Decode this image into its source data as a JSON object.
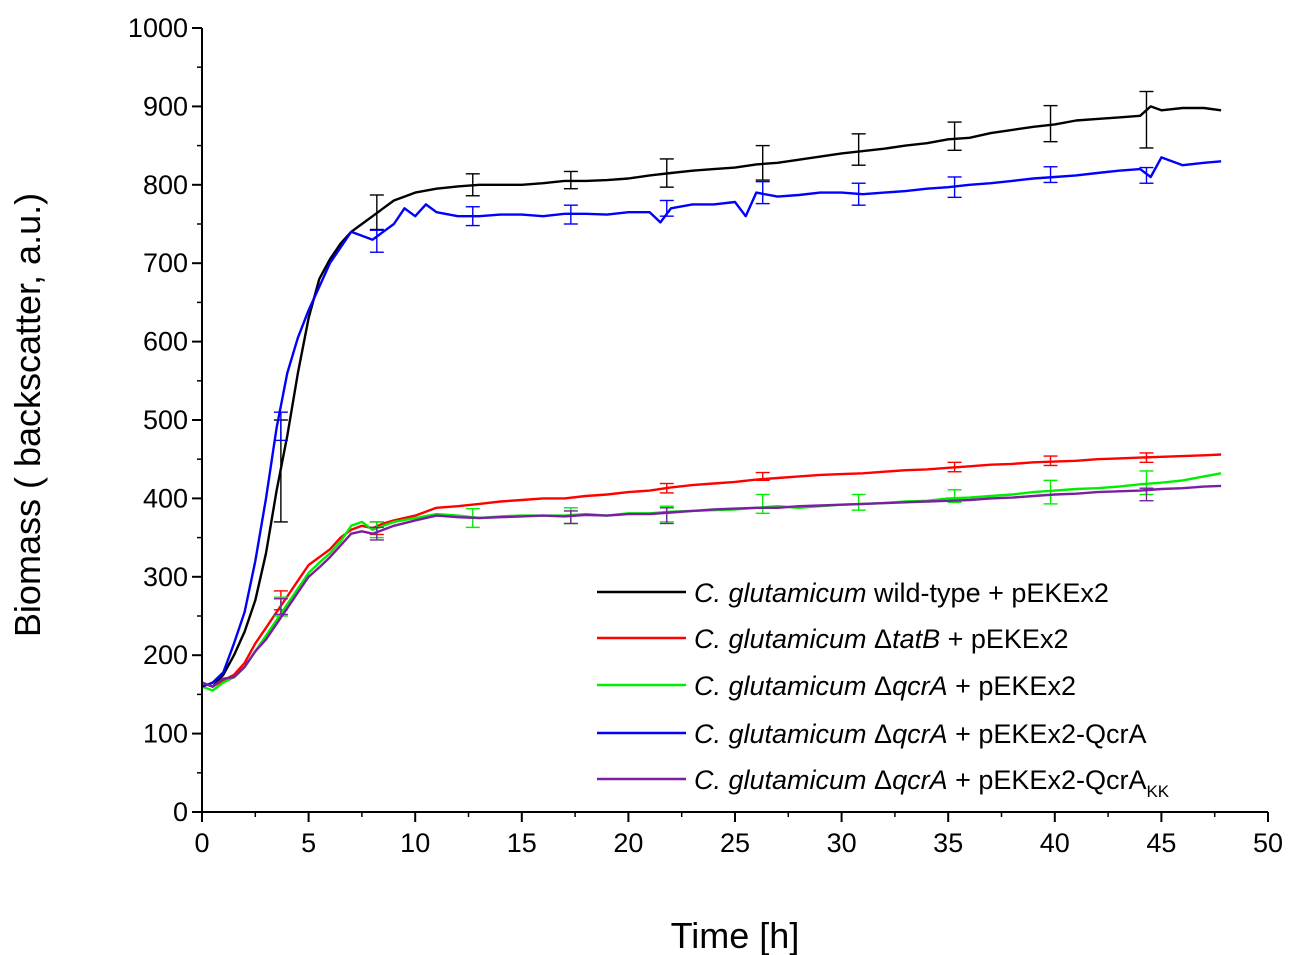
{
  "chart_data": {
    "type": "line",
    "title": "",
    "xlabel": "Time [h]",
    "ylabel": "Biomass ( backscatter, a.u.)",
    "xlim": [
      0,
      50
    ],
    "ylim": [
      0,
      1000
    ],
    "x_ticks": [
      0,
      5,
      10,
      15,
      20,
      25,
      30,
      35,
      40,
      45,
      50
    ],
    "y_ticks": [
      0,
      100,
      200,
      300,
      400,
      500,
      600,
      700,
      800,
      900,
      1000
    ],
    "grid": false,
    "legend_position": "bottom-right",
    "series": [
      {
        "name": "C. glutamicum wild-type + pEKEx2",
        "legend_parts": [
          [
            "C. glutamicum",
            "i"
          ],
          [
            " wild-type + pEKEx2",
            "n"
          ]
        ],
        "color": "#000000",
        "x": [
          0,
          0.5,
          1,
          1.5,
          2,
          2.5,
          3,
          3.5,
          4,
          4.5,
          5,
          5.5,
          6,
          6.5,
          7,
          7.5,
          8,
          8.5,
          9,
          9.5,
          10,
          11,
          12,
          13,
          14,
          15,
          16,
          17,
          18,
          19,
          20,
          21,
          22,
          23,
          24,
          25,
          26,
          27,
          28,
          29,
          30,
          31,
          32,
          33,
          34,
          35,
          36,
          37,
          38,
          39,
          40,
          41,
          42,
          43,
          44,
          44.5,
          45,
          46,
          47,
          47.8
        ],
        "y": [
          165,
          160,
          175,
          200,
          230,
          270,
          330,
          410,
          480,
          560,
          630,
          680,
          705,
          725,
          740,
          750,
          760,
          770,
          780,
          785,
          790,
          795,
          798,
          800,
          800,
          800,
          802,
          805,
          805,
          806,
          808,
          812,
          815,
          818,
          820,
          822,
          826,
          828,
          832,
          836,
          840,
          843,
          846,
          850,
          853,
          858,
          860,
          866,
          870,
          874,
          877,
          882,
          884,
          886,
          888,
          900,
          895,
          898,
          898,
          895
        ],
        "errors": [
          {
            "x": 3.7,
            "y": 435,
            "e": 65
          },
          {
            "x": 8.2,
            "y": 765,
            "e": 22
          },
          {
            "x": 12.7,
            "y": 800,
            "e": 14
          },
          {
            "x": 17.3,
            "y": 806,
            "e": 11
          },
          {
            "x": 21.8,
            "y": 815,
            "e": 18
          },
          {
            "x": 26.3,
            "y": 828,
            "e": 22
          },
          {
            "x": 30.8,
            "y": 845,
            "e": 20
          },
          {
            "x": 35.3,
            "y": 862,
            "e": 18
          },
          {
            "x": 39.8,
            "y": 878,
            "e": 23
          },
          {
            "x": 44.3,
            "y": 883,
            "e": 36
          }
        ]
      },
      {
        "name": "C. glutamicum ΔtatB + pEKEx2",
        "legend_parts": [
          [
            "C. glutamicum",
            "i"
          ],
          [
            " Δ",
            "n"
          ],
          [
            "tatB",
            "i"
          ],
          [
            " + pEKEx2",
            "n"
          ]
        ],
        "color": "#ff0000",
        "x": [
          0,
          0.5,
          1,
          1.5,
          2,
          2.5,
          3,
          3.5,
          4,
          4.5,
          5,
          5.5,
          6,
          6.5,
          7,
          7.5,
          8,
          8.5,
          9,
          10,
          11,
          12,
          13,
          14,
          15,
          16,
          17,
          18,
          19,
          20,
          21,
          22,
          23,
          24,
          25,
          26,
          27,
          28,
          29,
          30,
          31,
          32,
          33,
          34,
          35,
          36,
          37,
          38,
          39,
          40,
          41,
          42,
          43,
          44,
          45,
          46,
          47,
          47.8
        ],
        "y": [
          165,
          160,
          168,
          175,
          190,
          215,
          235,
          255,
          275,
          295,
          315,
          325,
          335,
          350,
          360,
          365,
          362,
          368,
          372,
          378,
          388,
          390,
          393,
          396,
          398,
          400,
          400,
          403,
          405,
          408,
          410,
          414,
          417,
          419,
          421,
          424,
          426,
          428,
          430,
          431,
          432,
          434,
          436,
          437,
          439,
          441,
          443,
          444,
          446,
          447,
          448,
          450,
          451,
          452,
          453,
          454,
          455,
          456
        ],
        "errors": [
          {
            "x": 3.7,
            "y": 270,
            "e": 12
          },
          {
            "x": 8.2,
            "y": 362,
            "e": 8
          },
          {
            "x": 21.8,
            "y": 413,
            "e": 6
          },
          {
            "x": 26.3,
            "y": 428,
            "e": 5
          },
          {
            "x": 35.3,
            "y": 440,
            "e": 6
          },
          {
            "x": 39.8,
            "y": 448,
            "e": 6
          },
          {
            "x": 44.3,
            "y": 452,
            "e": 6
          }
        ]
      },
      {
        "name": "C. glutamicum ΔqcrA + pEKEx2",
        "legend_parts": [
          [
            "C. glutamicum",
            "i"
          ],
          [
            " Δ",
            "n"
          ],
          [
            "qcrA",
            "i"
          ],
          [
            " + pEKEx2",
            "n"
          ]
        ],
        "color": "#00ee00",
        "x": [
          0,
          0.5,
          1,
          1.5,
          2,
          2.5,
          3,
          3.5,
          4,
          4.5,
          5,
          5.5,
          6,
          6.5,
          7,
          7.5,
          8,
          8.5,
          9,
          10,
          11,
          12,
          13,
          14,
          15,
          16,
          17,
          18,
          19,
          20,
          21,
          22,
          23,
          24,
          25,
          26,
          27,
          28,
          29,
          30,
          31,
          32,
          33,
          34,
          35,
          36,
          37,
          38,
          39,
          40,
          41,
          42,
          43,
          44,
          45,
          46,
          47,
          47.8
        ],
        "y": [
          160,
          155,
          165,
          172,
          185,
          205,
          225,
          245,
          265,
          285,
          305,
          318,
          330,
          345,
          365,
          370,
          360,
          365,
          370,
          375,
          380,
          378,
          375,
          377,
          378,
          378,
          378,
          380,
          378,
          381,
          381,
          383,
          384,
          385,
          386,
          388,
          390,
          388,
          390,
          392,
          393,
          394,
          396,
          397,
          400,
          401,
          403,
          405,
          408,
          410,
          412,
          413,
          415,
          418,
          420,
          423,
          428,
          432
        ],
        "errors": [
          {
            "x": 3.7,
            "y": 262,
            "e": 12
          },
          {
            "x": 8.2,
            "y": 360,
            "e": 10
          },
          {
            "x": 12.7,
            "y": 375,
            "e": 12
          },
          {
            "x": 17.3,
            "y": 378,
            "e": 10
          },
          {
            "x": 21.8,
            "y": 380,
            "e": 10
          },
          {
            "x": 26.3,
            "y": 393,
            "e": 12
          },
          {
            "x": 30.8,
            "y": 395,
            "e": 10
          },
          {
            "x": 35.3,
            "y": 403,
            "e": 8
          },
          {
            "x": 39.8,
            "y": 408,
            "e": 15
          },
          {
            "x": 44.3,
            "y": 420,
            "e": 15
          }
        ]
      },
      {
        "name": "C. glutamicum ΔqcrA + pEKEx2-QcrA",
        "legend_parts": [
          [
            "C. glutamicum",
            "i"
          ],
          [
            " Δ",
            "n"
          ],
          [
            "qcrA",
            "i"
          ],
          [
            " + pEKEx2-QcrA",
            "n"
          ]
        ],
        "color": "#0000ff",
        "x": [
          0,
          0.5,
          1,
          1.5,
          2,
          2.5,
          3,
          3.5,
          4,
          4.5,
          5,
          5.5,
          6,
          6.5,
          7,
          7.5,
          8,
          8.5,
          9,
          9.5,
          10,
          10.5,
          11,
          12,
          13,
          14,
          15,
          16,
          17,
          18,
          19,
          20,
          21,
          21.5,
          22,
          23,
          24,
          25,
          25.5,
          26,
          27,
          28,
          29,
          30,
          31,
          32,
          33,
          34,
          35,
          36,
          37,
          38,
          39,
          40,
          41,
          42,
          43,
          44,
          44.5,
          45,
          46,
          47,
          47.8
        ],
        "y": [
          160,
          165,
          178,
          215,
          255,
          320,
          400,
          490,
          560,
          605,
          640,
          670,
          700,
          720,
          740,
          735,
          730,
          740,
          750,
          770,
          760,
          775,
          765,
          760,
          760,
          762,
          762,
          760,
          763,
          763,
          762,
          765,
          765,
          752,
          770,
          775,
          775,
          778,
          760,
          790,
          785,
          787,
          790,
          790,
          788,
          790,
          792,
          795,
          797,
          800,
          802,
          805,
          808,
          810,
          812,
          815,
          818,
          820,
          810,
          835,
          825,
          828,
          830
        ],
        "errors": [
          {
            "x": 3.7,
            "y": 492,
            "e": 18
          },
          {
            "x": 8.2,
            "y": 728,
            "e": 14
          },
          {
            "x": 12.7,
            "y": 760,
            "e": 12
          },
          {
            "x": 17.3,
            "y": 762,
            "e": 12
          },
          {
            "x": 21.8,
            "y": 770,
            "e": 10
          },
          {
            "x": 26.3,
            "y": 790,
            "e": 14
          },
          {
            "x": 30.8,
            "y": 788,
            "e": 14
          },
          {
            "x": 35.3,
            "y": 797,
            "e": 13
          },
          {
            "x": 39.8,
            "y": 813,
            "e": 10
          },
          {
            "x": 44.3,
            "y": 812,
            "e": 10
          }
        ]
      },
      {
        "name": "C. glutamicum ΔqcrA + pEKEx2-QcrAKK",
        "legend_parts": [
          [
            "C. glutamicum",
            "i"
          ],
          [
            " Δ",
            "n"
          ],
          [
            "qcrA",
            "i"
          ],
          [
            " + pEKEx2-QcrA",
            "n"
          ],
          [
            "KK",
            "sub"
          ]
        ],
        "color": "#7b1fa2",
        "x": [
          0,
          0.5,
          1,
          1.5,
          2,
          2.5,
          3,
          3.5,
          4,
          4.5,
          5,
          5.5,
          6,
          6.5,
          7,
          7.5,
          8,
          8.5,
          9,
          10,
          11,
          12,
          13,
          14,
          15,
          16,
          17,
          18,
          19,
          20,
          21,
          22,
          23,
          24,
          25,
          26,
          27,
          28,
          29,
          30,
          31,
          32,
          33,
          34,
          35,
          36,
          37,
          38,
          39,
          40,
          41,
          42,
          43,
          44,
          45,
          46,
          47,
          47.8
        ],
        "y": [
          165,
          160,
          170,
          172,
          185,
          205,
          220,
          240,
          260,
          280,
          300,
          312,
          325,
          340,
          355,
          358,
          355,
          360,
          365,
          372,
          378,
          376,
          375,
          376,
          377,
          378,
          377,
          379,
          378,
          380,
          380,
          382,
          384,
          386,
          387,
          388,
          388,
          390,
          391,
          392,
          393,
          394,
          395,
          396,
          397,
          398,
          400,
          401,
          403,
          405,
          406,
          408,
          409,
          410,
          412,
          413,
          415,
          416
        ],
        "errors": [
          {
            "x": 3.7,
            "y": 262,
            "e": 10
          },
          {
            "x": 8.2,
            "y": 355,
            "e": 8
          },
          {
            "x": 17.3,
            "y": 376,
            "e": 8
          },
          {
            "x": 21.8,
            "y": 378,
            "e": 10
          },
          {
            "x": 44.3,
            "y": 405,
            "e": 8
          }
        ]
      }
    ]
  }
}
